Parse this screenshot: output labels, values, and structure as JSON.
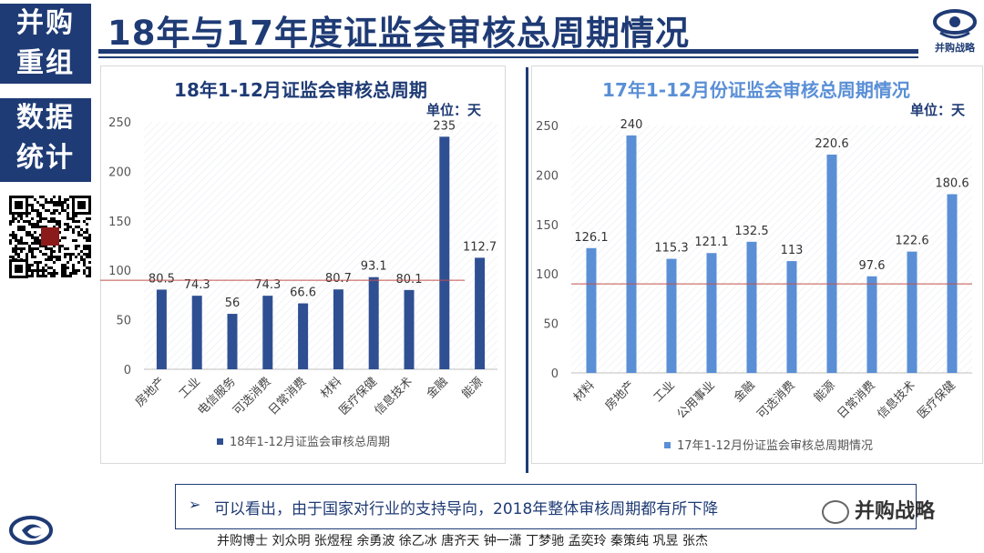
{
  "sidebar": {
    "tag1": [
      "并购",
      "重组"
    ],
    "tag2": [
      "数据",
      "统计"
    ]
  },
  "title": "18年与17年度证监会审核总周期情况",
  "logo_text": "并购战略",
  "callout": {
    "bullet": "➢",
    "text": "可以看出，由于国家对行业的支持导向，2018年整体审核周期都有所下降"
  },
  "watermark": "并购战略",
  "footer": "并购博士 刘众明 张煜程 余勇波 徐乙冰 唐齐天 钟一潇 丁梦驰 孟奕玲 秦策纯 巩昱 张杰",
  "colors": {
    "navy": "#1f3b75",
    "bar18": "#2f4f93",
    "bar17": "#5a8fd6",
    "refline": "#c0504d"
  },
  "chart_data": [
    {
      "type": "bar",
      "title": "18年1-12月证监会审核总周期",
      "unit": "单位：天",
      "categories": [
        "房地产",
        "工业",
        "电信服务",
        "可选消费",
        "日常消费",
        "材料",
        "医疗保健",
        "信息技术",
        "金融",
        "能源"
      ],
      "series": [
        {
          "name": "18年1-12月证监会审核总周期",
          "values": [
            80.5,
            74.3,
            56,
            74.3,
            66.6,
            80.7,
            93.1,
            80.1,
            235,
            112.7
          ]
        }
      ],
      "value_labels": [
        "80.5",
        "74.3",
        "56",
        "74.3",
        "66.6",
        "80.7",
        "93.1",
        "80.1",
        "235",
        "112.7"
      ],
      "ylim": [
        0,
        250
      ],
      "yticks": [
        "0",
        "50",
        "100",
        "150",
        "200",
        "250"
      ],
      "reference_line": 90,
      "legend": "bottom"
    },
    {
      "type": "bar",
      "title": "17年1-12月份证监会审核总周期情况",
      "unit": "单位：天",
      "categories": [
        "材料",
        "房地产",
        "工业",
        "公用事业",
        "金融",
        "可选消费",
        "能源",
        "日常消费",
        "信息技术",
        "医疗保健"
      ],
      "series": [
        {
          "name": "17年1-12月份证监会审核总周期情况",
          "values": [
            126.1,
            240,
            115.3,
            121.1,
            132.5,
            113,
            220.6,
            97.6,
            122.6,
            180.6
          ]
        }
      ],
      "value_labels": [
        "126.1",
        "240",
        "115.3",
        "121.1",
        "132.5",
        "113",
        "220.6",
        "97.6",
        "122.6",
        "180.6"
      ],
      "ylim": [
        0,
        250
      ],
      "yticks": [
        "0",
        "50",
        "100",
        "150",
        "200",
        "250"
      ],
      "reference_line": 90,
      "legend": "bottom"
    }
  ]
}
